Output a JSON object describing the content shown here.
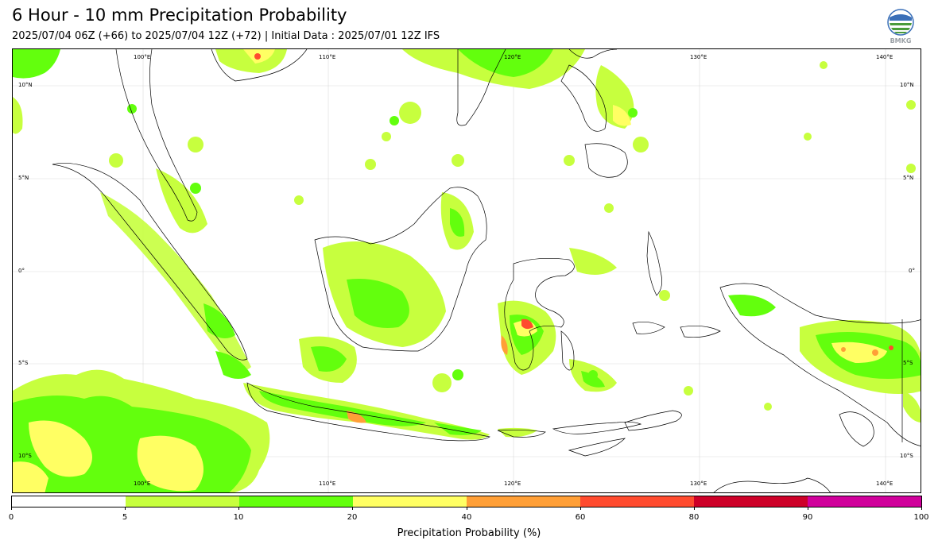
{
  "title": "6 Hour - 10 mm Precipitation Probability",
  "subtitle": "2025/07/04 06Z (+66) to 2025/07/04 12Z (+72) | Initial Data : 2025/07/01 12Z IFS",
  "logo": {
    "icon": "bmkg-logo",
    "text": "BMKG"
  },
  "map": {
    "top_lon_labels": [
      "100°E",
      "110°E",
      "120°E",
      "130°E",
      "140°E"
    ],
    "bottom_lon_labels": [
      "100°E",
      "110°E",
      "120°E",
      "130°E",
      "140°E"
    ],
    "left_lat_labels": [
      "10°N",
      "5°N",
      "0°",
      "5°S",
      "10°S"
    ],
    "right_lat_labels": [
      "10°N",
      "5°N",
      "0°",
      "5°S",
      "10°S"
    ],
    "extent": {
      "lon": [
        93,
        142
      ],
      "lat": [
        -12,
        12
      ]
    }
  },
  "colorbar": {
    "colors": [
      "#ffffff",
      "#c7ff3e",
      "#63ff0d",
      "#ffff63",
      "#ff9f37",
      "#ff4b2e",
      "#cd0028",
      "#d0009b"
    ],
    "ticks": [
      "0",
      "5",
      "10",
      "20",
      "40",
      "60",
      "80",
      "90",
      "100"
    ],
    "label": "Precipitation Probability (%)"
  }
}
